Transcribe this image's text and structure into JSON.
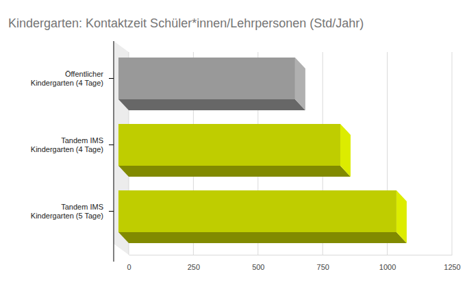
{
  "chart_data": {
    "type": "bar",
    "orientation": "horizontal",
    "title": "Kindergarten: Kontaktzeit Schüler*innen/Lehrpersonen (Std/Jahr)",
    "categories": [
      "Öffentlicher Kindergarten (4 Tage)",
      "Tandem IMS Kindergarten (4 Tage)",
      "Tandem IMS Kindergarten (5 Tage)"
    ],
    "values": [
      683,
      858,
      1075
    ],
    "colors": [
      "#999999",
      "#bfcd00",
      "#bfcd00"
    ],
    "xlim": [
      0,
      1250
    ],
    "xticks": [
      0,
      250,
      500,
      750,
      1000,
      1250
    ],
    "grid": true
  }
}
